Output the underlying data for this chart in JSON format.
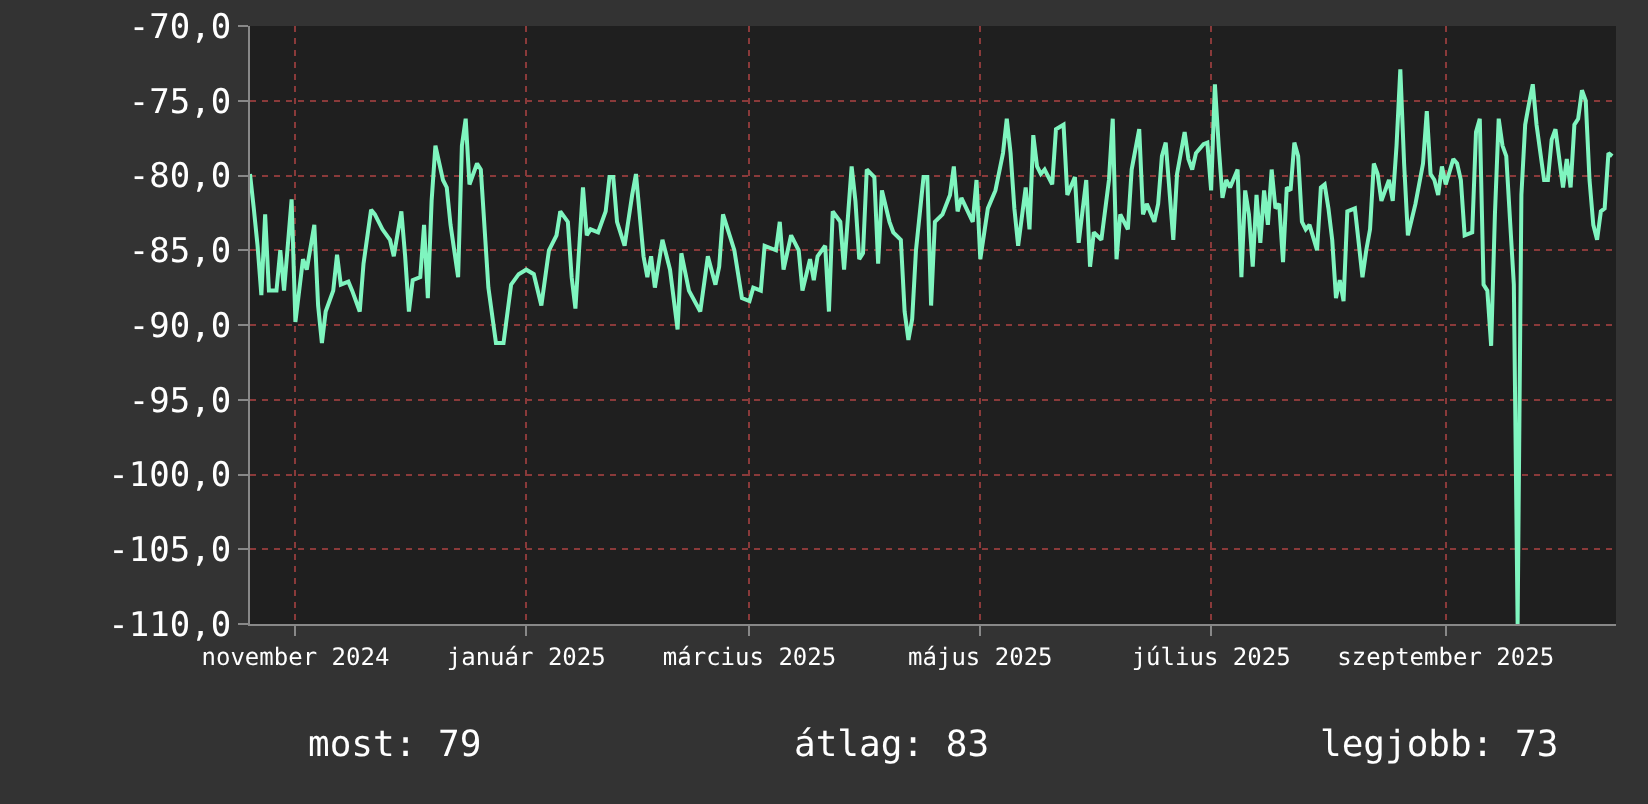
{
  "chart_data": {
    "type": "line",
    "x": [
      "2024-10-20",
      "2024-10-21",
      "2024-10-22",
      "2024-10-23",
      "2024-10-24",
      "2024-10-25",
      "2024-10-27",
      "2024-10-28",
      "2024-10-29",
      "2024-10-31",
      "2024-11-01",
      "2024-11-03",
      "2024-11-04",
      "2024-11-06",
      "2024-11-07",
      "2024-11-08",
      "2024-11-09",
      "2024-11-11",
      "2024-11-12",
      "2024-11-13",
      "2024-11-15",
      "2024-11-16",
      "2024-11-18",
      "2024-11-19",
      "2024-11-21",
      "2024-11-22",
      "2024-11-24",
      "2024-11-26",
      "2024-11-27",
      "2024-11-29",
      "2024-11-30",
      "2024-12-01",
      "2024-12-02",
      "2024-12-04",
      "2024-12-05",
      "2024-12-06",
      "2024-12-07",
      "2024-12-08",
      "2024-12-10",
      "2024-12-11",
      "2024-12-12",
      "2024-12-14",
      "2024-12-15",
      "2024-12-16",
      "2024-12-17",
      "2024-12-19",
      "2024-12-20",
      "2024-12-22",
      "2024-12-24",
      "2024-12-26",
      "2024-12-28",
      "2024-12-30",
      "2025-01-01",
      "2025-01-03",
      "2025-01-05",
      "2025-01-07",
      "2025-01-09",
      "2025-01-10",
      "2025-01-12",
      "2025-01-13",
      "2025-01-14",
      "2025-01-16",
      "2025-01-17",
      "2025-01-18",
      "2025-01-20",
      "2025-01-22",
      "2025-01-23",
      "2025-01-24",
      "2025-01-25",
      "2025-01-27",
      "2025-01-29",
      "2025-01-30",
      "2025-02-01",
      "2025-02-02",
      "2025-02-03",
      "2025-02-04",
      "2025-02-06",
      "2025-02-08",
      "2025-02-10",
      "2025-02-11",
      "2025-02-13",
      "2025-02-16",
      "2025-02-18",
      "2025-02-20",
      "2025-02-21",
      "2025-02-22",
      "2025-02-25",
      "2025-02-27",
      "2025-03-01",
      "2025-03-02",
      "2025-03-04",
      "2025-03-05",
      "2025-03-08",
      "2025-03-09",
      "2025-03-10",
      "2025-03-12",
      "2025-03-14",
      "2025-03-15",
      "2025-03-17",
      "2025-03-18",
      "2025-03-19",
      "2025-03-21",
      "2025-03-22",
      "2025-03-23",
      "2025-03-25",
      "2025-03-26",
      "2025-03-28",
      "2025-03-29",
      "2025-03-30",
      "2025-03-31",
      "2025-04-01",
      "2025-04-03",
      "2025-04-04",
      "2025-04-05",
      "2025-04-07",
      "2025-04-08",
      "2025-04-10",
      "2025-04-11",
      "2025-04-12",
      "2025-04-13",
      "2025-04-14",
      "2025-04-16",
      "2025-04-17",
      "2025-04-18",
      "2025-04-19",
      "2025-04-21",
      "2025-04-23",
      "2025-04-24",
      "2025-04-25",
      "2025-04-26",
      "2025-04-29",
      "2025-04-30",
      "2025-05-01",
      "2025-05-03",
      "2025-05-05",
      "2025-05-07",
      "2025-05-08",
      "2025-05-09",
      "2025-05-10",
      "2025-05-11",
      "2025-05-13",
      "2025-05-14",
      "2025-05-15",
      "2025-05-16",
      "2025-05-17",
      "2025-05-18",
      "2025-05-20",
      "2025-05-21",
      "2025-05-23",
      "2025-05-24",
      "2025-05-26",
      "2025-05-27",
      "2025-05-29",
      "2025-05-30",
      "2025-05-31",
      "2025-06-02",
      "2025-06-04",
      "2025-06-05",
      "2025-06-06",
      "2025-06-07",
      "2025-06-09",
      "2025-06-10",
      "2025-06-12",
      "2025-06-13",
      "2025-06-14",
      "2025-06-16",
      "2025-06-17",
      "2025-06-18",
      "2025-06-19",
      "2025-06-21",
      "2025-06-22",
      "2025-06-24",
      "2025-06-25",
      "2025-06-26",
      "2025-06-27",
      "2025-06-29",
      "2025-06-30",
      "2025-07-01",
      "2025-07-02",
      "2025-07-03",
      "2025-07-04",
      "2025-07-05",
      "2025-07-06",
      "2025-07-08",
      "2025-07-09",
      "2025-07-10",
      "2025-07-11",
      "2025-07-12",
      "2025-07-13",
      "2025-07-14",
      "2025-07-15",
      "2025-07-16",
      "2025-07-17",
      "2025-07-18",
      "2025-07-19",
      "2025-07-20",
      "2025-07-21",
      "2025-07-22",
      "2025-07-23",
      "2025-07-24",
      "2025-07-25",
      "2025-07-26",
      "2025-07-27",
      "2025-07-29",
      "2025-07-30",
      "2025-07-31",
      "2025-08-01",
      "2025-08-02",
      "2025-08-03",
      "2025-08-04",
      "2025-08-05",
      "2025-08-06",
      "2025-08-08",
      "2025-08-09",
      "2025-08-10",
      "2025-08-11",
      "2025-08-12",
      "2025-08-13",
      "2025-08-14",
      "2025-08-15",
      "2025-08-17",
      "2025-08-18",
      "2025-08-19",
      "2025-08-20",
      "2025-08-21",
      "2025-08-22",
      "2025-08-24",
      "2025-08-26",
      "2025-08-27",
      "2025-08-28",
      "2025-08-29",
      "2025-08-30",
      "2025-08-31",
      "2025-09-01",
      "2025-09-03",
      "2025-09-04",
      "2025-09-05",
      "2025-09-06",
      "2025-09-08",
      "2025-09-09",
      "2025-09-10",
      "2025-09-11",
      "2025-09-12",
      "2025-09-13",
      "2025-09-14",
      "2025-09-15",
      "2025-09-16",
      "2025-09-17",
      "2025-09-19",
      "2025-09-20",
      "2025-09-21",
      "2025-09-22",
      "2025-09-23",
      "2025-09-24",
      "2025-09-25",
      "2025-09-27",
      "2025-09-28",
      "2025-09-29",
      "2025-09-30",
      "2025-10-02",
      "2025-10-03",
      "2025-10-04",
      "2025-10-05",
      "2025-10-06",
      "2025-10-07",
      "2025-10-08",
      "2025-10-09",
      "2025-10-10",
      "2025-10-11",
      "2025-10-12",
      "2025-10-13",
      "2025-10-14",
      "2025-10-15"
    ],
    "series": [
      {
        "color": "#7ff5bf",
        "values": [
          -79.9,
          -82.2,
          -84.7,
          -88.0,
          -82.6,
          -87.7,
          -87.7,
          -85.0,
          -87.7,
          -81.6,
          -89.8,
          -85.6,
          -86.3,
          -83.3,
          -88.7,
          -91.2,
          -89.1,
          -87.7,
          -85.3,
          -87.3,
          -87.1,
          -87.7,
          -89.1,
          -85.9,
          -82.3,
          -82.6,
          -83.6,
          -84.3,
          -85.4,
          -82.4,
          -85.4,
          -89.1,
          -87.0,
          -86.8,
          -83.3,
          -88.2,
          -81.7,
          -78.0,
          -80.3,
          -80.8,
          -83.3,
          -86.8,
          -78.0,
          -76.2,
          -80.6,
          -79.2,
          -79.6,
          -87.5,
          -91.2,
          -91.2,
          -87.3,
          -86.6,
          -86.3,
          -86.6,
          -88.7,
          -85.0,
          -84.0,
          -82.4,
          -83.1,
          -86.8,
          -88.9,
          -80.8,
          -84.0,
          -83.6,
          -83.8,
          -82.4,
          -80.1,
          -80.1,
          -83.1,
          -84.7,
          -81.3,
          -79.9,
          -85.4,
          -86.8,
          -85.4,
          -87.5,
          -84.3,
          -86.3,
          -90.3,
          -85.2,
          -87.7,
          -89.1,
          -85.4,
          -87.3,
          -86.1,
          -82.6,
          -85.0,
          -88.2,
          -88.4,
          -87.5,
          -87.7,
          -84.7,
          -85.0,
          -83.1,
          -86.3,
          -84.0,
          -85.0,
          -87.7,
          -85.6,
          -87.0,
          -85.4,
          -84.7,
          -89.1,
          -82.4,
          -83.1,
          -86.3,
          -79.4,
          -81.7,
          -85.6,
          -85.2,
          -79.6,
          -80.1,
          -85.9,
          -81.0,
          -83.1,
          -83.8,
          -84.3,
          -89.1,
          -91.0,
          -89.6,
          -85.0,
          -80.1,
          -80.1,
          -88.7,
          -83.1,
          -82.6,
          -81.3,
          -79.4,
          -82.4,
          -81.5,
          -83.1,
          -80.3,
          -85.6,
          -82.2,
          -81.0,
          -78.5,
          -76.2,
          -78.5,
          -82.2,
          -84.7,
          -80.8,
          -83.6,
          -77.3,
          -79.4,
          -79.9,
          -79.6,
          -80.6,
          -76.9,
          -76.6,
          -81.3,
          -80.1,
          -84.5,
          -80.3,
          -86.1,
          -83.8,
          -84.3,
          -80.3,
          -76.2,
          -85.6,
          -82.6,
          -83.6,
          -79.6,
          -76.9,
          -82.6,
          -81.9,
          -83.1,
          -81.9,
          -78.7,
          -77.8,
          -84.3,
          -79.9,
          -77.1,
          -78.9,
          -79.6,
          -78.5,
          -77.9,
          -77.8,
          -81.0,
          -73.9,
          -78.0,
          -81.5,
          -80.3,
          -80.8,
          -79.6,
          -86.8,
          -81.0,
          -82.6,
          -86.1,
          -81.3,
          -84.5,
          -81.0,
          -83.3,
          -79.6,
          -82.2,
          -81.9,
          -85.8,
          -80.8,
          -81.0,
          -77.8,
          -78.7,
          -83.1,
          -83.6,
          -83.3,
          -85.0,
          -80.8,
          -80.6,
          -82.2,
          -84.3,
          -88.2,
          -87.0,
          -88.4,
          -82.4,
          -82.2,
          -84.5,
          -86.8,
          -85.0,
          -83.6,
          -79.2,
          -79.9,
          -81.7,
          -80.3,
          -81.7,
          -78.0,
          -72.9,
          -79.2,
          -84.0,
          -81.9,
          -79.2,
          -75.7,
          -79.9,
          -80.3,
          -81.3,
          -79.4,
          -80.6,
          -78.9,
          -79.2,
          -80.3,
          -84.0,
          -83.8,
          -77.1,
          -76.2,
          -87.3,
          -87.7,
          -91.4,
          -82.6,
          -76.2,
          -78.0,
          -78.7,
          -87.3,
          -110.0,
          -81.3,
          -76.6,
          -75.2,
          -73.9,
          -76.6,
          -80.3,
          -80.3,
          -77.6,
          -76.9,
          -80.8,
          -78.9,
          -80.8,
          -76.6,
          -76.2,
          -74.3,
          -75.0,
          -80.3,
          -83.3,
          -84.3,
          -82.4,
          -82.2,
          -78.5,
          -78.7
        ]
      }
    ],
    "xlim": [
      "2024-10-20",
      "2025-10-16"
    ],
    "xticks": [
      {
        "value": "2024-11-01",
        "label": "november 2024"
      },
      {
        "value": "2025-01-01",
        "label": "január 2025"
      },
      {
        "value": "2025-03-01",
        "label": "március 2025"
      },
      {
        "value": "2025-05-01",
        "label": "május 2025"
      },
      {
        "value": "2025-07-01",
        "label": "július 2025"
      },
      {
        "value": "2025-09-01",
        "label": "szeptember 2025"
      }
    ],
    "ylim": [
      -110,
      -70
    ],
    "yticks": [
      {
        "value": -110,
        "label": "-110,0"
      },
      {
        "value": -105,
        "label": "-105,0"
      },
      {
        "value": -100,
        "label": "-100,0"
      },
      {
        "value": -95,
        "label": "-95,0"
      },
      {
        "value": -90,
        "label": "-90,0"
      },
      {
        "value": -85,
        "label": "-85,0"
      },
      {
        "value": -80,
        "label": "-80,0"
      },
      {
        "value": -75,
        "label": "-75,0"
      },
      {
        "value": -70,
        "label": "-70,0"
      }
    ],
    "grid": true,
    "marker": "none",
    "line_style": "solid",
    "annotations": [
      "most: 79",
      "átlag: 83",
      "legjobb: 73"
    ]
  }
}
